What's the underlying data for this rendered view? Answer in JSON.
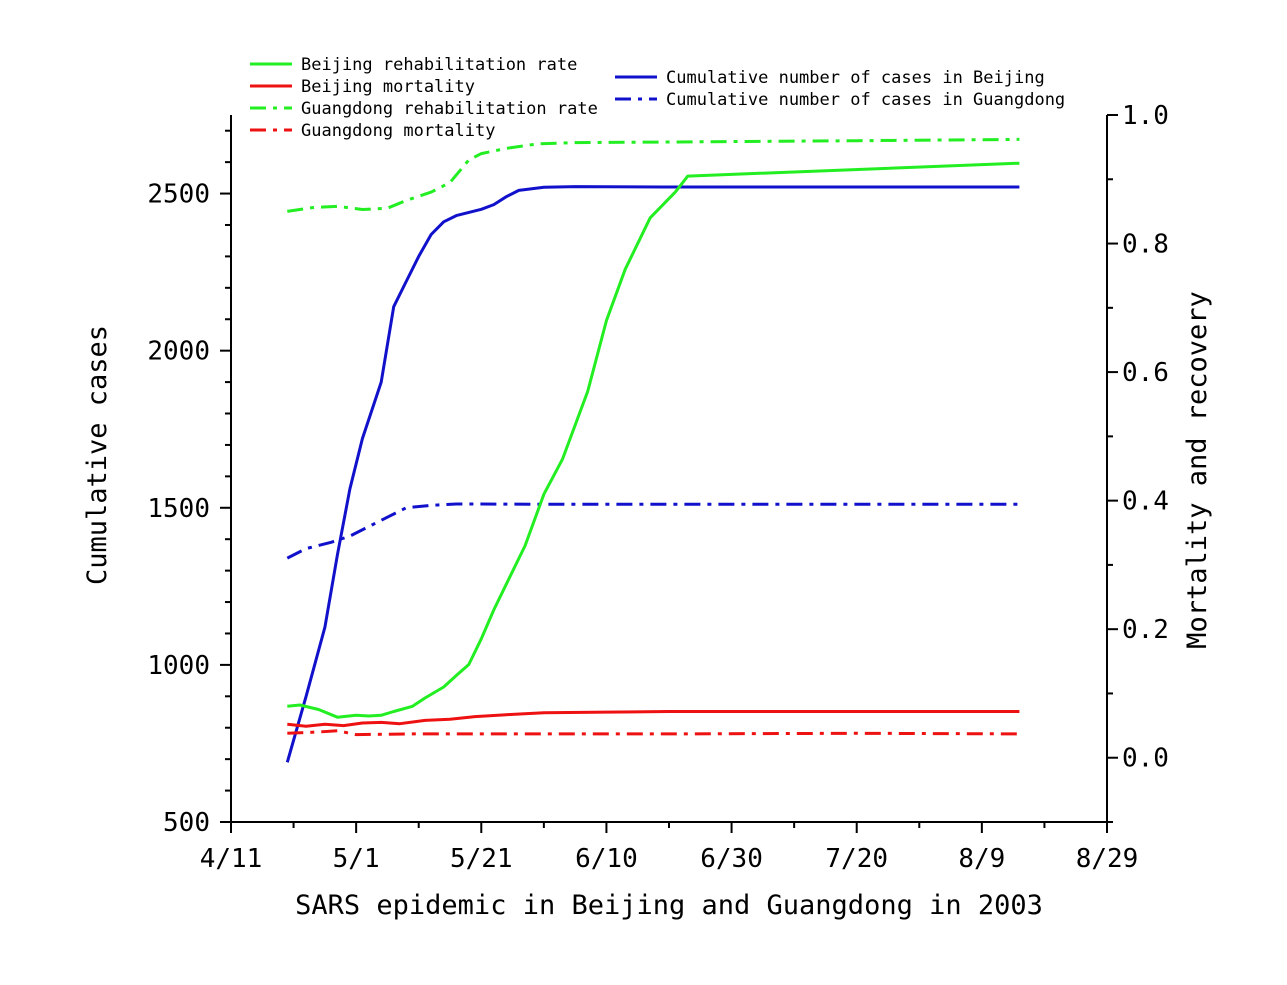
{
  "chart_data": {
    "type": "line",
    "title": "",
    "xlabel": "SARS epidemic in Beijing and Guangdong in 2003",
    "ylabel_left": "Cumulative cases",
    "ylabel_right": "Mortality and recovery",
    "x_ticks": [
      "4/11",
      "5/1",
      "5/21",
      "6/10",
      "6/30",
      "7/20",
      "8/9",
      "8/29"
    ],
    "xlim": [
      "2003-04-11",
      "2003-08-29"
    ],
    "ylim_left": [
      500,
      2750
    ],
    "ylim_right": [
      -0.1,
      1.0
    ],
    "y_ticks_left": [
      500,
      1000,
      1500,
      2000,
      2500
    ],
    "y_ticks_right": [
      0.0,
      0.2,
      0.4,
      0.6,
      0.8,
      1.0
    ],
    "y_tick_labels_right": [
      "0.0",
      "0.2",
      "0.4",
      "0.6",
      "0.8",
      "1.0"
    ],
    "grid": false,
    "legend_left": [
      {
        "label": "Beijing rehabilitation rate",
        "color": "#22ee22",
        "dash": "solid"
      },
      {
        "label": "Beijing mortality",
        "color": "#ee1111",
        "dash": "solid"
      },
      {
        "label": "Guangdong rehabilitation rate",
        "color": "#22ee22",
        "dash": "dashdot"
      },
      {
        "label": "Guangdong mortality",
        "color": "#ee1111",
        "dash": "dashdot"
      }
    ],
    "legend_right": [
      {
        "label": "Cumulative number of cases in Beijing",
        "color": "#1111cc",
        "dash": "solid"
      },
      {
        "label": "Cumulative number of cases in Guangdong",
        "color": "#1111cc",
        "dash": "dashdot"
      }
    ],
    "series": [
      {
        "name": "Cumulative number of cases in Beijing",
        "axis": "left",
        "color": "#1111cc",
        "dash": "solid",
        "x": [
          "2003-04-20",
          "2003-04-23",
          "2003-04-26",
          "2003-04-28",
          "2003-04-30",
          "2003-05-02",
          "2003-05-05",
          "2003-05-07",
          "2003-05-09",
          "2003-05-11",
          "2003-05-13",
          "2003-05-15",
          "2003-05-17",
          "2003-05-19",
          "2003-05-21",
          "2003-05-23",
          "2003-05-25",
          "2003-05-27",
          "2003-05-31",
          "2003-06-05",
          "2003-06-19",
          "2003-08-15"
        ],
        "y": [
          690,
          900,
          1120,
          1350,
          1560,
          1720,
          1900,
          2140,
          2220,
          2300,
          2370,
          2410,
          2430,
          2440,
          2450,
          2465,
          2490,
          2510,
          2520,
          2522,
          2521,
          2521
        ]
      },
      {
        "name": "Cumulative number of cases in Guangdong",
        "axis": "left",
        "color": "#1111cc",
        "dash": "dashdot",
        "x": [
          "2003-04-20",
          "2003-04-23",
          "2003-04-27",
          "2003-04-30",
          "2003-05-03",
          "2003-05-06",
          "2003-05-09",
          "2003-05-13",
          "2003-05-17",
          "2003-05-21",
          "2003-05-31",
          "2003-06-20",
          "2003-08-15"
        ],
        "y": [
          1340,
          1370,
          1390,
          1410,
          1440,
          1470,
          1500,
          1508,
          1512,
          1512,
          1511,
          1511,
          1511
        ]
      },
      {
        "name": "Beijing rehabilitation rate",
        "axis": "right",
        "color": "#22ee22",
        "dash": "solid",
        "x": [
          "2003-04-20",
          "2003-04-22",
          "2003-04-25",
          "2003-04-28",
          "2003-05-01",
          "2003-05-03",
          "2003-05-05",
          "2003-05-07",
          "2003-05-10",
          "2003-05-12",
          "2003-05-15",
          "2003-05-17",
          "2003-05-19",
          "2003-05-21",
          "2003-05-23",
          "2003-05-25",
          "2003-05-28",
          "2003-05-31",
          "2003-06-03",
          "2003-06-07",
          "2003-06-10",
          "2003-06-13",
          "2003-06-17",
          "2003-06-21",
          "2003-06-23",
          "2003-08-15"
        ],
        "x_note": "",
        "y": [
          0.08,
          0.082,
          0.075,
          0.063,
          0.066,
          0.065,
          0.066,
          0.072,
          0.08,
          0.093,
          0.11,
          0.128,
          0.145,
          0.185,
          0.23,
          0.27,
          0.33,
          0.41,
          0.465,
          0.57,
          0.68,
          0.76,
          0.84,
          0.88,
          0.905,
          0.925
        ]
      },
      {
        "name": "Guangdong rehabilitation rate",
        "axis": "right",
        "color": "#22ee22",
        "dash": "dashdot",
        "x": [
          "2003-04-20",
          "2003-04-24",
          "2003-04-28",
          "2003-05-02",
          "2003-05-06",
          "2003-05-09",
          "2003-05-13",
          "2003-05-16",
          "2003-05-19",
          "2003-05-21",
          "2003-05-25",
          "2003-05-30",
          "2003-06-05",
          "2003-06-20",
          "2003-07-20",
          "2003-08-15"
        ],
        "y": [
          0.85,
          0.856,
          0.858,
          0.853,
          0.855,
          0.867,
          0.88,
          0.895,
          0.93,
          0.94,
          0.948,
          0.955,
          0.957,
          0.958,
          0.96,
          0.962
        ]
      },
      {
        "name": "Beijing mortality",
        "axis": "right",
        "color": "#ee1111",
        "dash": "solid",
        "x": [
          "2003-04-20",
          "2003-04-23",
          "2003-04-26",
          "2003-04-29",
          "2003-05-02",
          "2003-05-05",
          "2003-05-08",
          "2003-05-12",
          "2003-05-16",
          "2003-05-20",
          "2003-05-25",
          "2003-05-31",
          "2003-06-10",
          "2003-06-20",
          "2003-08-15"
        ],
        "y": [
          0.052,
          0.049,
          0.052,
          0.05,
          0.054,
          0.055,
          0.053,
          0.058,
          0.06,
          0.064,
          0.067,
          0.07,
          0.071,
          0.072,
          0.072
        ]
      },
      {
        "name": "Guangdong mortality",
        "axis": "right",
        "color": "#ee1111",
        "dash": "dashdot",
        "x": [
          "2003-04-20",
          "2003-04-25",
          "2003-04-28",
          "2003-05-01",
          "2003-05-10",
          "2003-05-31",
          "2003-06-20",
          "2003-07-20",
          "2003-08-15"
        ],
        "y": [
          0.038,
          0.04,
          0.042,
          0.036,
          0.037,
          0.037,
          0.037,
          0.038,
          0.037
        ]
      }
    ]
  }
}
